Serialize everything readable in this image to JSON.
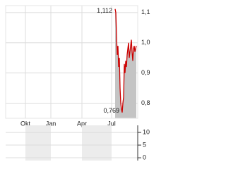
{
  "chart_data": [
    {
      "type": "line",
      "x": [
        155,
        156,
        157,
        158,
        159,
        160,
        161,
        162,
        163,
        164,
        165,
        166,
        167,
        168,
        169,
        170,
        171,
        172,
        173,
        174,
        175,
        176,
        177,
        178,
        179,
        180,
        181,
        182,
        183,
        184,
        185
      ],
      "series": [
        {
          "color": "#cc0000",
          "fill": "#c4c4c4",
          "values": [
            1.112,
            1.1,
            1.02,
            0.96,
            0.99,
            0.92,
            0.95,
            0.85,
            0.8,
            0.78,
            0.769,
            0.8,
            0.82,
            0.93,
            0.9,
            0.94,
            0.92,
            0.96,
            0.98,
            1.0,
            0.95,
            0.97,
            0.99,
            1.01,
            0.97,
            0.94,
            0.98,
            0.99,
            0.97,
            0.98,
            0.99
          ]
        }
      ],
      "annotations": [
        {
          "text": "1,112"
        },
        {
          "text": "0,769"
        }
      ],
      "xlim": [
        0,
        187
      ],
      "xticks": [
        {
          "value": 28,
          "label": "Okt"
        },
        {
          "value": 64,
          "label": "Jan"
        },
        {
          "value": 108,
          "label": "Apr"
        },
        {
          "value": 150,
          "label": "Jul"
        }
      ],
      "ylim": [
        0.75,
        1.123
      ],
      "yticks": [
        {
          "value": 0.8,
          "label": "0,8"
        },
        {
          "value": 0.9,
          "label": "0,9"
        },
        {
          "value": 1.0,
          "label": "1,0"
        },
        {
          "value": 1.1,
          "label": "1,1"
        }
      ],
      "grid": true
    },
    {
      "type": "bar",
      "xlim": [
        0,
        187
      ],
      "ylim": [
        -1.1,
        12.8
      ],
      "yticks": [
        0,
        5,
        10
      ],
      "grid": true
    }
  ]
}
